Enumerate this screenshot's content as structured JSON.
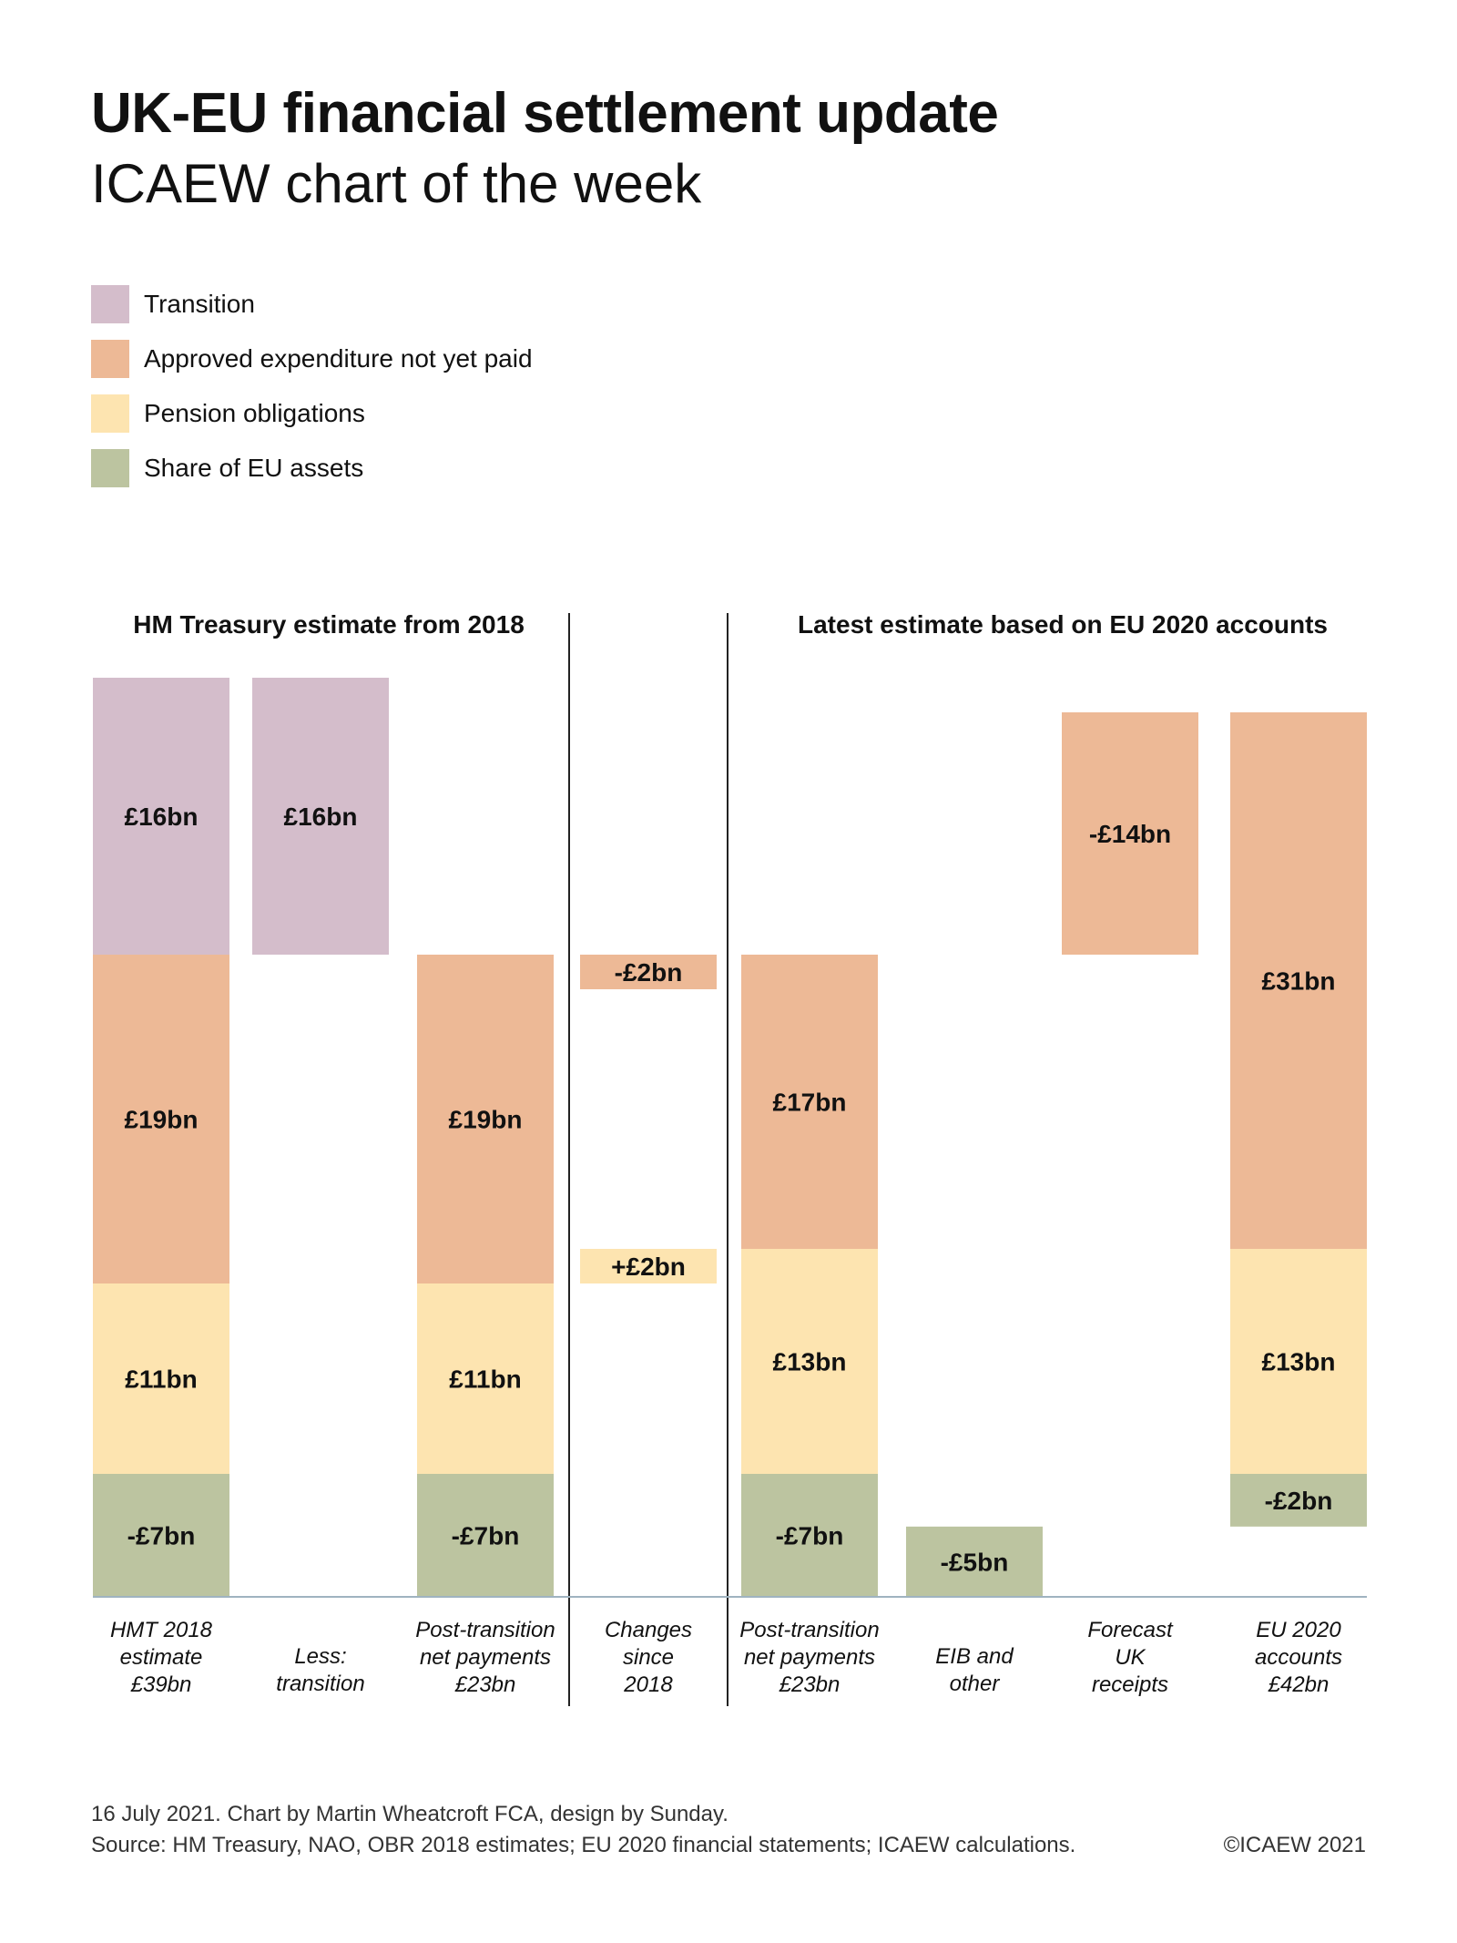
{
  "header": {
    "title": "UK-EU financial settlement update",
    "subtitle": "ICAEW chart of the week"
  },
  "colors": {
    "transition": "#d4bdcb",
    "approved": "#edb996",
    "pension": "#fde4b0",
    "assets": "#bcc4a0",
    "baseline": "#9fb3c0",
    "divider": "#222222"
  },
  "legend": [
    {
      "key": "transition",
      "label": "Transition"
    },
    {
      "key": "approved",
      "label": "Approved expenditure not yet paid"
    },
    {
      "key": "pension",
      "label": "Pension obligations"
    },
    {
      "key": "assets",
      "label": "Share of EU assets"
    }
  ],
  "chart_data": {
    "type": "bar",
    "subtype": "stacked-waterfall",
    "title": "UK-EU financial settlement update",
    "units": "£bn",
    "sections": [
      {
        "title": "HM Treasury estimate from 2018",
        "columns": [
          0,
          1,
          2
        ]
      },
      {
        "title": "",
        "columns": [
          3
        ]
      },
      {
        "title": "Latest estimate based on EU 2020 accounts",
        "columns": [
          4,
          5,
          6,
          7
        ]
      }
    ],
    "categories": [
      [
        "HMT 2018",
        "estimate",
        "£39bn"
      ],
      [
        "Less:",
        "transition"
      ],
      [
        "Post-transition",
        "net payments",
        "£23bn"
      ],
      [
        "Changes",
        "since",
        "2018"
      ],
      [
        "Post-transition",
        "net payments",
        "£23bn"
      ],
      [
        "EIB and",
        "other"
      ],
      [
        "Forecast",
        "UK",
        "receipts"
      ],
      [
        "EU 2020",
        "accounts",
        "£42bn"
      ]
    ],
    "columns": [
      {
        "segments": [
          {
            "series": "transition",
            "from": 30,
            "to": 46,
            "label": "£16bn"
          },
          {
            "series": "approved",
            "from": 11,
            "to": 30,
            "label": "£19bn"
          },
          {
            "series": "pension",
            "from": 0,
            "to": 11,
            "label": "£11bn"
          },
          {
            "series": "assets",
            "from": 0,
            "to": -7,
            "label": "-£7bn"
          }
        ]
      },
      {
        "segments": [
          {
            "series": "transition",
            "from": 30,
            "to": 46,
            "label": "£16bn"
          }
        ]
      },
      {
        "segments": [
          {
            "series": "approved",
            "from": 11,
            "to": 30,
            "label": "£19bn"
          },
          {
            "series": "pension",
            "from": 0,
            "to": 11,
            "label": "£11bn"
          },
          {
            "series": "assets",
            "from": 0,
            "to": -7,
            "label": "-£7bn"
          }
        ]
      },
      {
        "segments": [
          {
            "series": "approved",
            "from": 28,
            "to": 30,
            "label": "-£2bn"
          },
          {
            "series": "pension",
            "from": 11,
            "to": 13,
            "label": "+£2bn"
          }
        ]
      },
      {
        "segments": [
          {
            "series": "approved",
            "from": 13,
            "to": 30,
            "label": "£17bn"
          },
          {
            "series": "pension",
            "from": 0,
            "to": 13,
            "label": "£13bn"
          },
          {
            "series": "assets",
            "from": 0,
            "to": -7,
            "label": "-£7bn"
          }
        ]
      },
      {
        "segments": [
          {
            "series": "assets",
            "from": -2,
            "to": -7,
            "label": "-£5bn"
          }
        ]
      },
      {
        "segments": [
          {
            "series": "approved",
            "from": 30,
            "to": 44,
            "label": "-£14bn"
          }
        ]
      },
      {
        "segments": [
          {
            "series": "approved",
            "from": 13,
            "to": 44,
            "label": "£31bn"
          },
          {
            "series": "pension",
            "from": 0,
            "to": 13,
            "label": "£13bn"
          },
          {
            "series": "assets",
            "from": 0,
            "to": -2,
            "label": "-£2bn"
          }
        ]
      }
    ],
    "series": [
      {
        "key": "transition",
        "name": "Transition"
      },
      {
        "key": "approved",
        "name": "Approved expenditure not yet paid"
      },
      {
        "key": "pension",
        "name": "Pension obligations"
      },
      {
        "key": "assets",
        "name": "Share of EU assets"
      }
    ],
    "legend_position": "top-left",
    "grid": false
  },
  "footer": {
    "line1": "16 July 2021.   Chart by Martin Wheatcroft FCA, design by Sunday.",
    "line2": "Source: HM Treasury, NAO, OBR 2018 estimates; EU 2020 financial statements; ICAEW calculations.",
    "copyright": "©ICAEW 2021"
  }
}
